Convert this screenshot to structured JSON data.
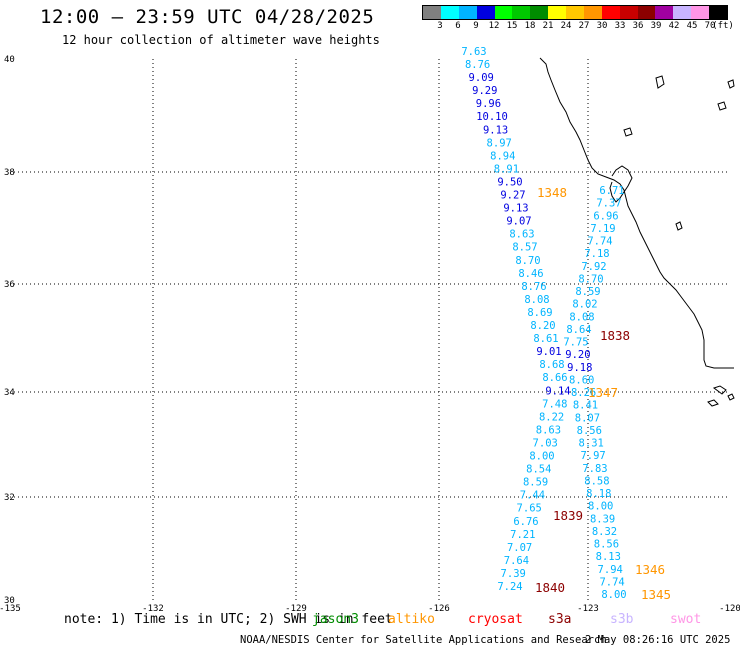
{
  "header": {
    "title": "12:00 — 23:59 UTC 04/28/2025",
    "subtitle": "12 hour collection of altimeter wave heights"
  },
  "colorbar": {
    "colors": [
      "#808080",
      "#00ffff",
      "#00b4ff",
      "#0000e0",
      "#00ff00",
      "#00c800",
      "#008c00",
      "#ffff00",
      "#ffc800",
      "#ff9600",
      "#ff0000",
      "#c80000",
      "#8c0000",
      "#a000a0",
      "#c8b4ff",
      "#ff96e6",
      "#000000"
    ],
    "labels": [
      "3",
      "6",
      "9",
      "12",
      "15",
      "18",
      "21",
      "24",
      "27",
      "30",
      "33",
      "36",
      "39",
      "42",
      "45",
      "70",
      "(ft)"
    ]
  },
  "axes": {
    "lat_labels": [
      "40",
      "38",
      "36",
      "34",
      "32",
      "30"
    ],
    "lon_labels": [
      "-135",
      "-132",
      "-129",
      "-126",
      "-123",
      "-120"
    ]
  },
  "tracks": [
    {
      "values": [
        "7.63",
        "8.76",
        "9.09",
        "9.29",
        "9.96",
        "10.10",
        "9.13",
        "8.97",
        "8.94",
        "8.91",
        "9.50",
        "9.27",
        "9.13",
        "9.07",
        "8.63",
        "8.57",
        "8.70",
        "8.46",
        "8.76",
        "8.08",
        "8.69",
        "8.20",
        "8.61",
        "9.01",
        "8.68",
        "8.66",
        "9.14",
        "7.48",
        "8.22",
        "8.63",
        "7.03",
        "8.00",
        "8.54",
        "8.59",
        "7.44",
        "7.65",
        "6.76",
        "7.21",
        "7.07",
        "7.64",
        "7.39",
        "7.24"
      ]
    },
    {
      "values": [
        "6.71",
        "7.37",
        "6.96",
        "7.19",
        "7.74",
        "7.18",
        "7.92",
        "8.70",
        "8.59",
        "8.02",
        "8.08",
        "8.64",
        "7.75",
        "9.20",
        "9.18",
        "8.60",
        "8.26",
        "8.41",
        "8.07",
        "8.56",
        "8.31",
        "7.97",
        "7.83",
        "8.58",
        "8.18",
        "8.00",
        "8.39",
        "8.32",
        "8.56",
        "8.13",
        "7.94",
        "7.74",
        "8.00"
      ]
    }
  ],
  "pass_labels": [
    "1348",
    "1838",
    "1347",
    "1839",
    "1346",
    "1840",
    "1345"
  ],
  "legend": {
    "note": "note: 1) Time is in UTC; 2) SWH is in feet",
    "satellites": [
      {
        "name": "jason3",
        "color": "#008c00"
      },
      {
        "name": "altiko",
        "color": "#ff9600"
      },
      {
        "name": "cryosat",
        "color": "#ff0000"
      },
      {
        "name": "s3a",
        "color": "#8c0000"
      },
      {
        "name": "s3b",
        "color": "#c8b4ff"
      },
      {
        "name": "swot",
        "color": "#ff96e6"
      }
    ]
  },
  "footer": {
    "credit": "NOAA/NESDIS Center for Satellite Applications and Research",
    "timestamp": "2 May 08:26:16 UTC 2025"
  }
}
